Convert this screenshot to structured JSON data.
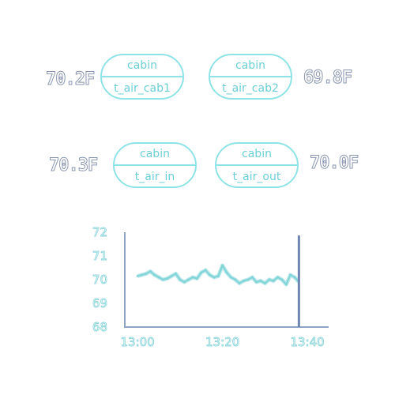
{
  "sensors": [
    {
      "group": "cabin",
      "name": "t_air_cab1",
      "reading": "70.2F"
    },
    {
      "group": "cabin",
      "name": "t_air_cab2",
      "reading": "69.8F"
    },
    {
      "group": "cabin",
      "name": "t_air_in",
      "reading": "70.3F"
    },
    {
      "group": "cabin",
      "name": "t_air_out",
      "reading": "70.0F"
    }
  ],
  "colors": {
    "accent": "#8fe3e6",
    "line": "#7fd4d8",
    "axis": "#8fa4c2",
    "cursor": "#6f86b3"
  },
  "chart_data": {
    "type": "line",
    "title": "",
    "xlabel": "",
    "ylabel": "",
    "ylim": [
      68,
      72
    ],
    "yticks": [
      "72",
      "71",
      "70",
      "69",
      "68"
    ],
    "xticks": [
      "13:00",
      "13:20",
      "13:40"
    ],
    "x_range_minutes_after_13_00": [
      -3,
      45
    ],
    "cursor_at": "13:38",
    "series": [
      {
        "x": [
          "13:00",
          "13:01",
          "13:02",
          "13:03",
          "13:04",
          "13:05",
          "13:06",
          "13:07",
          "13:08",
          "13:09",
          "13:10",
          "13:11",
          "13:12",
          "13:13",
          "13:14",
          "13:15",
          "13:16",
          "13:17",
          "13:18",
          "13:19",
          "13:20",
          "13:21",
          "13:22",
          "13:23",
          "13:24",
          "13:25",
          "13:26",
          "13:27",
          "13:28",
          "13:29",
          "13:30",
          "13:31",
          "13:32",
          "13:33",
          "13:34",
          "13:35",
          "13:36",
          "13:37",
          "13:38"
        ],
        "values": [
          70.15,
          70.2,
          70.25,
          70.35,
          70.2,
          70.1,
          70.0,
          70.05,
          70.15,
          70.25,
          70.0,
          69.9,
          70.0,
          70.1,
          70.05,
          70.3,
          70.4,
          70.2,
          70.1,
          70.15,
          70.6,
          70.3,
          70.1,
          70.0,
          69.85,
          69.95,
          70.0,
          70.1,
          69.9,
          69.95,
          69.85,
          70.0,
          69.95,
          70.1,
          70.0,
          69.8,
          70.2,
          70.1,
          69.9
        ]
      }
    ]
  }
}
